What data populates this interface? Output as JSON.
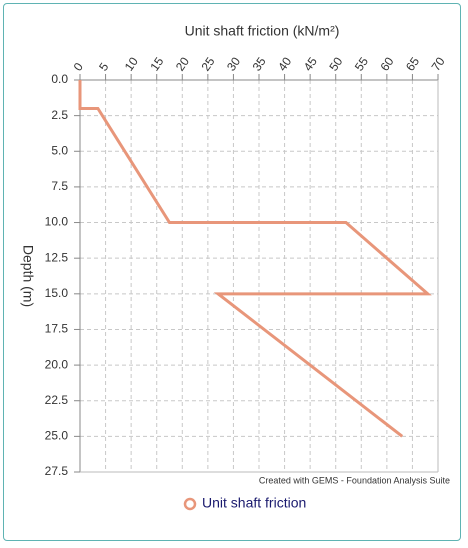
{
  "chart_data": {
    "type": "line",
    "x_label": "Unit shaft friction  (kN/m²)",
    "y_label": "Depth  (m)",
    "annotation": "Created with GEMS - Foundation Analysis Suite",
    "x": [
      0,
      0,
      3.5,
      17.5,
      52,
      68,
      27,
      63
    ],
    "series": [
      {
        "name": "Unit shaft friction",
        "color": "#e8967a",
        "values": [
          0,
          2,
          2,
          10,
          10,
          15,
          15,
          25
        ]
      }
    ],
    "xlim": [
      0,
      70
    ],
    "xticks": [
      0,
      5,
      10,
      15,
      20,
      25,
      30,
      35,
      40,
      45,
      50,
      55,
      60,
      65,
      70
    ],
    "ylim": [
      0,
      27.5
    ],
    "yticks": [
      {
        "value": 0,
        "label": "0.0"
      },
      2.5,
      {
        "value": 5,
        "label": "5.0"
      },
      7.5,
      {
        "value": 10,
        "label": "10.0"
      },
      12.5,
      {
        "value": 15,
        "label": "15.0"
      },
      17.5,
      {
        "value": 20,
        "label": "20.0"
      },
      22.5,
      {
        "value": 25,
        "label": "25.0"
      },
      27.5
    ],
    "y_inverted": true,
    "grid": true
  }
}
